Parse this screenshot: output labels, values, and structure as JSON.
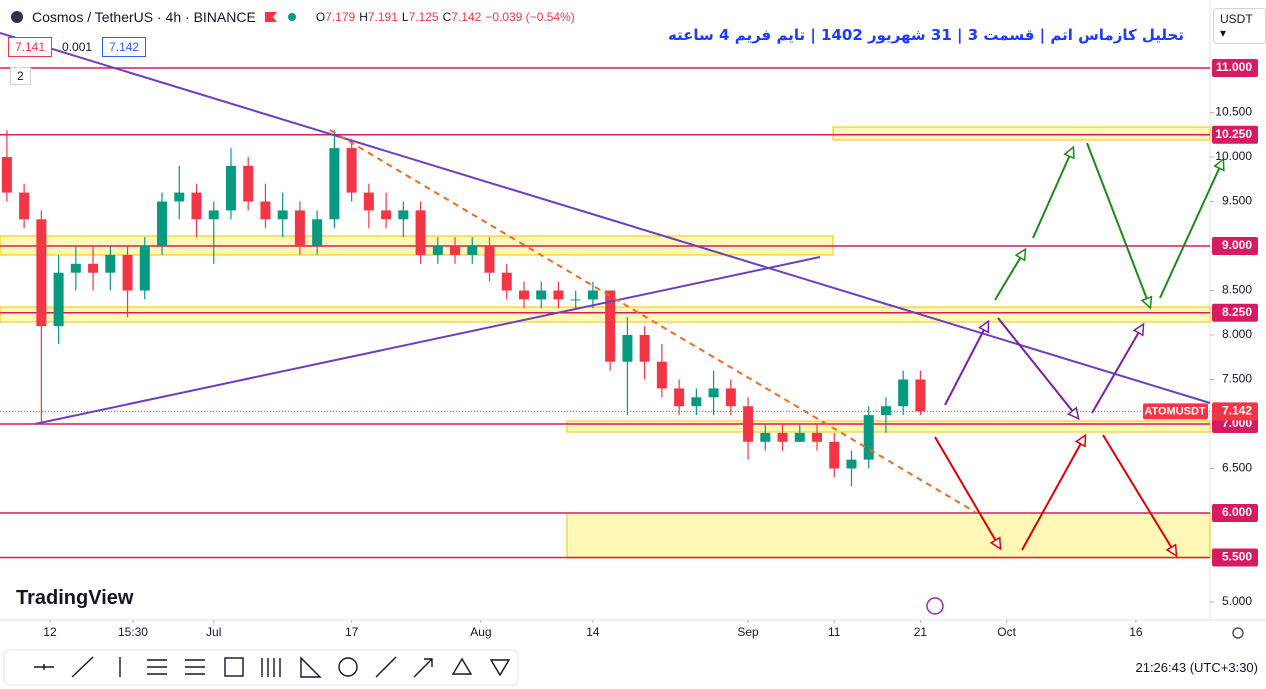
{
  "header": {
    "symbol": "Cosmos / TetherUS · 4h · BINANCE",
    "ohlc": [
      {
        "key": "O",
        "value": "7.179"
      },
      {
        "key": "H",
        "value": "7.191"
      },
      {
        "key": "L",
        "value": "7.125"
      },
      {
        "key": "C",
        "value": "7.142"
      }
    ],
    "change": "−0.039 (−0.54%)",
    "sell": "7.141",
    "spread": "0.001",
    "buy": "7.142",
    "indicators_count": "2",
    "currency": "USDT"
  },
  "chart_data": {
    "type": "candlestick",
    "title": "تحلیل کازماس اتم | قسمت 3 | 31 شهریور 1402 | تایم فریم 4 ساعته",
    "x": [
      7,
      9,
      11,
      13,
      15,
      17,
      19,
      21,
      23,
      25,
      27,
      29,
      31,
      33,
      35,
      37,
      39,
      41,
      43,
      45,
      47,
      49,
      51,
      53,
      55,
      57,
      59,
      61,
      63,
      65,
      67,
      69,
      71,
      73,
      75,
      77,
      79,
      81,
      83,
      85,
      87,
      89,
      91,
      93,
      95,
      97,
      99,
      101,
      103,
      105,
      107,
      109,
      111,
      113
    ],
    "open": [
      10.0,
      9.6,
      9.3,
      8.1,
      8.7,
      8.8,
      8.7,
      8.9,
      8.5,
      9.0,
      9.5,
      9.6,
      9.3,
      9.4,
      9.9,
      9.5,
      9.3,
      9.4,
      9.0,
      9.3,
      10.1,
      9.6,
      9.4,
      9.3,
      9.4,
      8.9,
      9.0,
      8.9,
      9.0,
      8.7,
      8.5,
      8.4,
      8.5,
      8.4,
      8.4,
      8.5,
      7.7,
      8.0,
      7.7,
      7.4,
      7.2,
      7.3,
      7.4,
      7.2,
      6.8,
      6.9,
      6.8,
      6.9,
      6.8,
      6.5,
      6.6,
      7.1,
      7.2,
      7.5
    ],
    "high": [
      10.3,
      9.7,
      9.4,
      8.9,
      9.0,
      9.0,
      9.0,
      9.0,
      9.1,
      9.6,
      9.9,
      9.7,
      9.5,
      10.1,
      10.0,
      9.7,
      9.6,
      9.5,
      9.4,
      10.3,
      10.2,
      9.7,
      9.6,
      9.5,
      9.5,
      9.1,
      9.1,
      9.1,
      9.1,
      8.8,
      8.6,
      8.6,
      8.6,
      8.5,
      8.6,
      8.5,
      8.2,
      8.1,
      7.9,
      7.5,
      7.4,
      7.6,
      7.5,
      7.3,
      7.0,
      7.0,
      7.0,
      7.0,
      6.9,
      6.7,
      7.2,
      7.3,
      7.6,
      7.6
    ],
    "low": [
      9.5,
      9.2,
      7.0,
      7.9,
      8.5,
      8.5,
      8.5,
      8.2,
      8.4,
      8.9,
      9.3,
      9.1,
      8.8,
      9.3,
      9.4,
      9.2,
      9.1,
      8.9,
      8.9,
      9.2,
      9.5,
      9.2,
      9.2,
      9.1,
      8.8,
      8.8,
      8.8,
      8.8,
      8.6,
      8.4,
      8.3,
      8.3,
      8.3,
      8.3,
      8.3,
      7.6,
      7.1,
      7.5,
      7.3,
      7.1,
      7.1,
      7.1,
      7.1,
      6.6,
      6.7,
      6.7,
      6.8,
      6.7,
      6.4,
      6.3,
      6.5,
      6.9,
      7.1,
      7.1
    ],
    "close": [
      9.6,
      9.3,
      8.1,
      8.7,
      8.8,
      8.7,
      8.9,
      8.5,
      9.0,
      9.5,
      9.6,
      9.3,
      9.4,
      9.9,
      9.5,
      9.3,
      9.4,
      9.0,
      9.3,
      10.1,
      9.6,
      9.4,
      9.3,
      9.4,
      8.9,
      9.0,
      8.9,
      9.0,
      8.7,
      8.5,
      8.4,
      8.5,
      8.4,
      8.4,
      8.5,
      7.7,
      8.0,
      7.7,
      7.4,
      7.2,
      7.3,
      7.4,
      7.2,
      6.8,
      6.9,
      6.8,
      6.9,
      6.8,
      6.5,
      6.6,
      7.1,
      7.2,
      7.5,
      7.142
    ],
    "up_color": "#089981",
    "down_color": "#f23645",
    "xlim": [
      6.2,
      146.6
    ],
    "ylim": [
      4.798,
      11.764
    ],
    "xticks": [
      12,
      {
        "value": 21.63,
        "label": "15:30"
      },
      {
        "value": 31,
        "label": "Jul"
      },
      {
        "value": 47,
        "label": "17"
      },
      {
        "value": 62,
        "label": "Aug"
      },
      {
        "value": 75,
        "label": "14"
      },
      {
        "value": 93,
        "label": "Sep"
      },
      {
        "value": 103,
        "label": "11"
      },
      {
        "value": 113,
        "label": "21"
      },
      {
        "value": 123,
        "label": "Oct"
      },
      {
        "value": 138,
        "label": "16"
      }
    ],
    "yticks": [
      {
        "value": 10.5,
        "label": "10.500"
      },
      {
        "value": 10,
        "label": "10.000"
      },
      {
        "value": 9.5,
        "label": "9.500"
      },
      {
        "value": 8.5,
        "label": "8.500"
      },
      {
        "value": 8,
        "label": "8.000"
      },
      {
        "value": 7.5,
        "label": "7.500"
      },
      {
        "value": 6.5,
        "label": "6.500"
      },
      {
        "value": 5,
        "label": "5.000"
      }
    ],
    "levels": [
      {
        "value": 11,
        "label": "11.000"
      },
      {
        "value": 10.25,
        "label": "10.250"
      },
      {
        "value": 9,
        "label": "9.000"
      },
      {
        "value": 8.25,
        "label": "8.250"
      },
      {
        "value": 7,
        "label": "7.000"
      },
      {
        "value": 6,
        "label": "6.000"
      },
      {
        "value": 5.5,
        "label": "5.500"
      }
    ],
    "level_color": "#d81b60",
    "last_price": {
      "value": 7.142,
      "label": "7.142",
      "symbol": "ATOMUSDT"
    },
    "grid": false
  },
  "branding": "TradingView",
  "status": {
    "time": "21:26:43",
    "timezone": "(UTC+3:30)"
  }
}
